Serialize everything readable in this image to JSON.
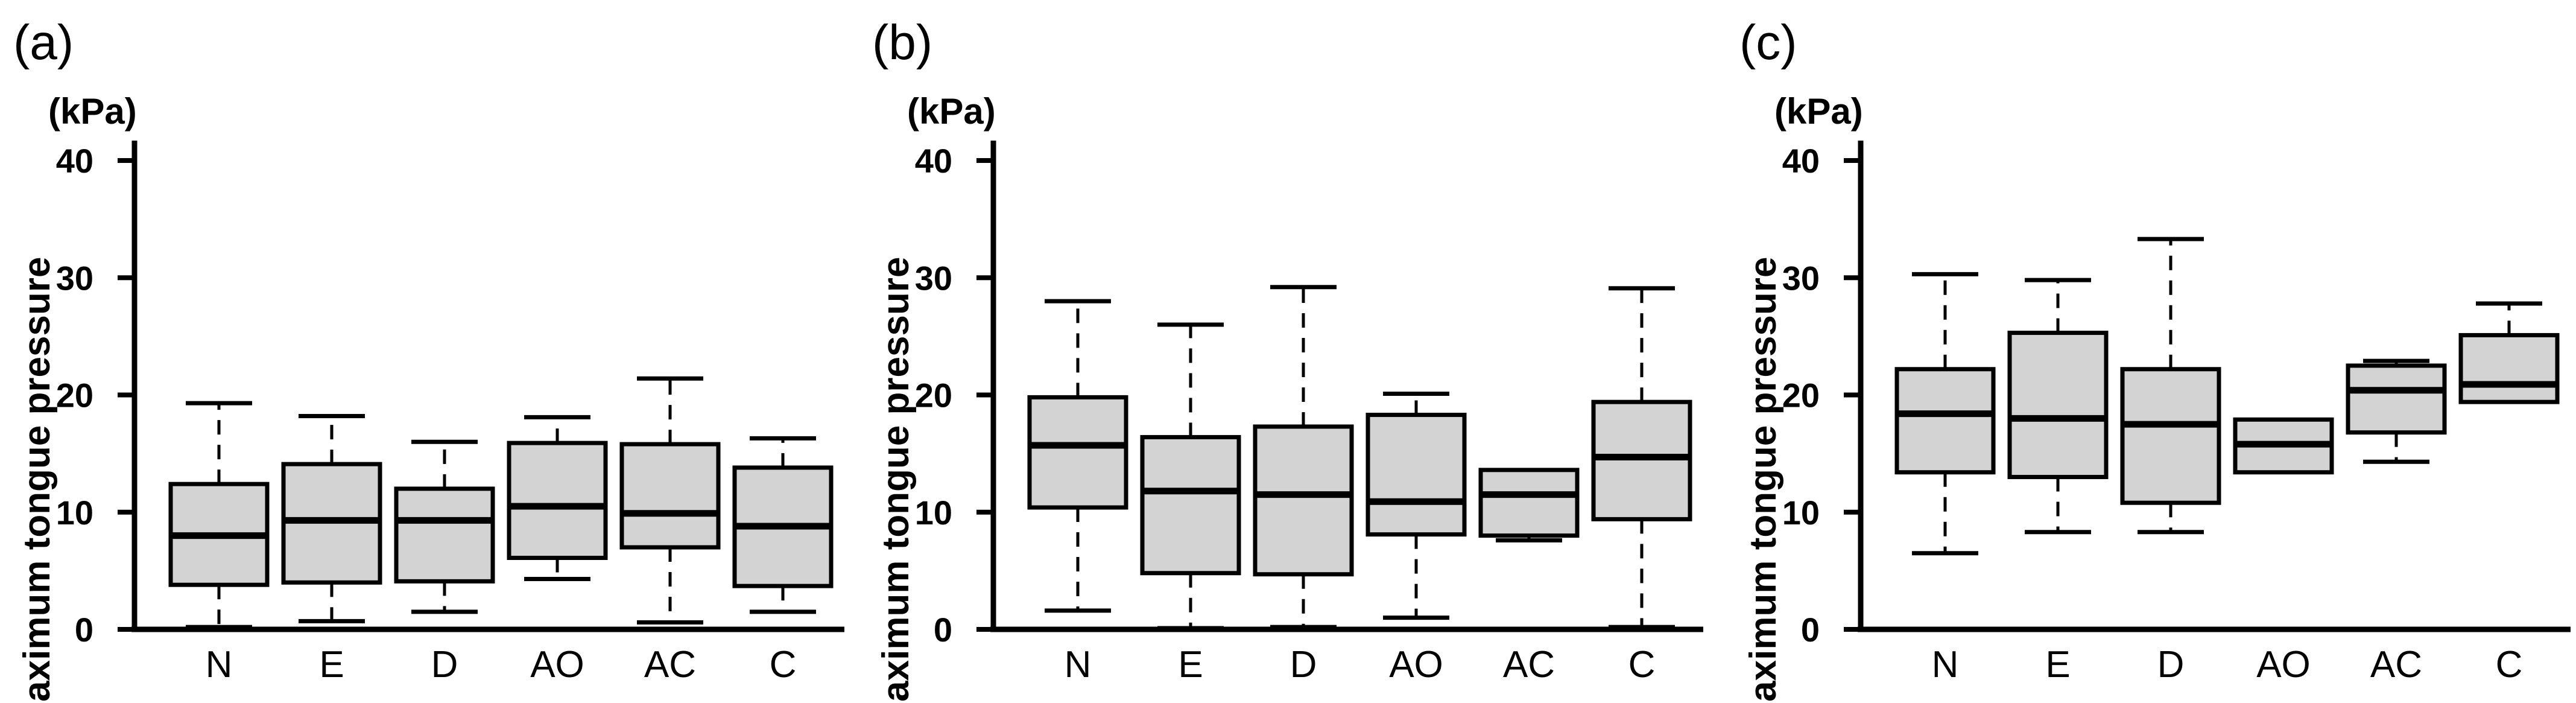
{
  "figure": {
    "background": "#ffffff",
    "line_color": "#000000",
    "box_fill": "#d3d3d3"
  },
  "chart_data": [
    {
      "type": "boxplot",
      "panel_label": "(a)",
      "unit_label": "(kPa)",
      "ylabel": "Maximum tongue pressure",
      "ylim": [
        0,
        40
      ],
      "yticks": [
        0,
        10,
        20,
        30,
        40
      ],
      "grid": false,
      "legend": null,
      "categories": [
        "N",
        "E",
        "D",
        "AO",
        "AC",
        "C"
      ],
      "boxes": [
        {
          "category": "N",
          "whisker_low": 0.2,
          "q1": 3.8,
          "median": 8.0,
          "q3": 12.4,
          "whisker_high": 19.3
        },
        {
          "category": "E",
          "whisker_low": 0.7,
          "q1": 4.0,
          "median": 9.3,
          "q3": 14.1,
          "whisker_high": 18.2
        },
        {
          "category": "D",
          "whisker_low": 1.5,
          "q1": 4.1,
          "median": 9.3,
          "q3": 12.0,
          "whisker_high": 16.0
        },
        {
          "category": "AO",
          "whisker_low": 4.3,
          "q1": 6.1,
          "median": 10.5,
          "q3": 15.9,
          "whisker_high": 18.1
        },
        {
          "category": "AC",
          "whisker_low": 0.6,
          "q1": 7.0,
          "median": 9.9,
          "q3": 15.8,
          "whisker_high": 21.4
        },
        {
          "category": "C",
          "whisker_low": 1.5,
          "q1": 3.7,
          "median": 8.8,
          "q3": 13.8,
          "whisker_high": 16.3
        }
      ]
    },
    {
      "type": "boxplot",
      "panel_label": "(b)",
      "unit_label": "(kPa)",
      "ylabel": "Maximum tongue pressure",
      "ylim": [
        0,
        40
      ],
      "yticks": [
        0,
        10,
        20,
        30,
        40
      ],
      "grid": false,
      "legend": null,
      "categories": [
        "N",
        "E",
        "D",
        "AO",
        "AC",
        "C"
      ],
      "boxes": [
        {
          "category": "N",
          "whisker_low": 1.6,
          "q1": 10.4,
          "median": 15.7,
          "q3": 19.8,
          "whisker_high": 28.0
        },
        {
          "category": "E",
          "whisker_low": 0.1,
          "q1": 4.8,
          "median": 11.8,
          "q3": 16.4,
          "whisker_high": 26.0
        },
        {
          "category": "D",
          "whisker_low": 0.2,
          "q1": 4.7,
          "median": 11.5,
          "q3": 17.3,
          "whisker_high": 29.2
        },
        {
          "category": "AO",
          "whisker_low": 1.0,
          "q1": 8.1,
          "median": 10.9,
          "q3": 18.3,
          "whisker_high": 20.1
        },
        {
          "category": "AC",
          "whisker_low": 7.6,
          "q1": 8.0,
          "median": 11.5,
          "q3": 13.6,
          "whisker_high": null
        },
        {
          "category": "C",
          "whisker_low": 0.2,
          "q1": 9.4,
          "median": 14.7,
          "q3": 19.4,
          "whisker_high": 29.1
        }
      ]
    },
    {
      "type": "boxplot",
      "panel_label": "(c)",
      "unit_label": "(kPa)",
      "ylabel": "Maximum tongue pressure",
      "ylim": [
        0,
        40
      ],
      "yticks": [
        0,
        10,
        20,
        30,
        40
      ],
      "grid": false,
      "legend": null,
      "categories": [
        "N",
        "E",
        "D",
        "AO",
        "AC",
        "C"
      ],
      "boxes": [
        {
          "category": "N",
          "whisker_low": 6.5,
          "q1": 13.4,
          "median": 18.4,
          "q3": 22.2,
          "whisker_high": 30.3
        },
        {
          "category": "E",
          "whisker_low": 8.3,
          "q1": 13.0,
          "median": 18.0,
          "q3": 25.3,
          "whisker_high": 29.8
        },
        {
          "category": "D",
          "whisker_low": 8.3,
          "q1": 10.8,
          "median": 17.5,
          "q3": 22.2,
          "whisker_high": 33.3
        },
        {
          "category": "AO",
          "whisker_low": null,
          "q1": 13.4,
          "median": 15.8,
          "q3": 17.9,
          "whisker_high": null
        },
        {
          "category": "AC",
          "whisker_low": 14.3,
          "q1": 16.8,
          "median": 20.4,
          "q3": 22.5,
          "whisker_high": 22.9
        },
        {
          "category": "C",
          "whisker_low": null,
          "q1": 19.4,
          "median": 20.9,
          "q3": 25.1,
          "whisker_high": 27.8
        }
      ]
    }
  ]
}
